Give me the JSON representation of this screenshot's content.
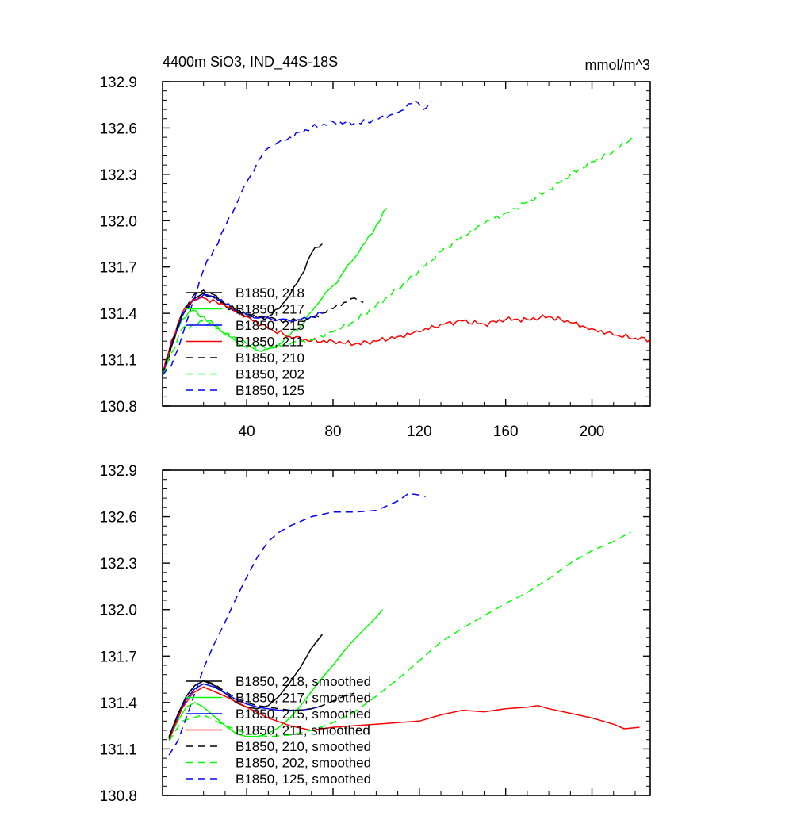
{
  "chart_data": [
    {
      "type": "line",
      "title": "4400m SiO3, IND_44S-18S",
      "units": "mmol/m^3",
      "xlabel": "",
      "ylabel": "",
      "xlim": [
        1,
        227
      ],
      "ylim": [
        130.8,
        132.9
      ],
      "xticks": [
        40,
        80,
        120,
        160,
        200
      ],
      "xtick_labels": [
        "40",
        "80",
        "120",
        "160",
        "200"
      ],
      "yticks": [
        130.8,
        131.1,
        131.4,
        131.7,
        132.0,
        132.3,
        132.6,
        132.9
      ],
      "ytick_labels": [
        "130.8",
        "131.1",
        "131.4",
        "131.7",
        "132.0",
        "132.3",
        "132.6",
        "132.9"
      ],
      "legend_location": "lower-left",
      "series": [
        {
          "name": "B1850, 218",
          "label": "B1850, 218",
          "color": "#000000",
          "dash": "solid",
          "x": [
            1,
            5,
            10,
            15,
            20,
            25,
            30,
            35,
            40,
            45,
            50,
            55,
            60,
            65,
            70,
            75
          ],
          "y": [
            131.0,
            131.18,
            131.38,
            131.49,
            131.53,
            131.5,
            131.45,
            131.42,
            131.38,
            131.37,
            131.38,
            131.43,
            131.52,
            131.64,
            131.79,
            131.85
          ]
        },
        {
          "name": "B1850, 217",
          "label": "B1850, 217",
          "color": "#00ff00",
          "dash": "solid",
          "x": [
            1,
            5,
            10,
            15,
            20,
            25,
            30,
            35,
            40,
            45,
            50,
            55,
            60,
            65,
            70,
            75,
            80,
            85,
            90,
            95,
            100,
            105
          ],
          "y": [
            131.0,
            131.2,
            131.36,
            131.42,
            131.38,
            131.32,
            131.27,
            131.22,
            131.18,
            131.16,
            131.17,
            131.2,
            131.26,
            131.32,
            131.41,
            131.5,
            131.58,
            131.67,
            131.76,
            131.86,
            131.97,
            132.08
          ]
        },
        {
          "name": "B1850, 215",
          "label": "B1850, 215",
          "color": "#0000ff",
          "dash": "solid",
          "x": [
            1,
            5,
            10,
            15,
            20,
            25,
            30,
            35,
            40,
            45,
            50,
            55,
            60,
            65,
            70,
            75
          ],
          "y": [
            131.0,
            131.2,
            131.38,
            131.48,
            131.52,
            131.51,
            131.46,
            131.42,
            131.39,
            131.37,
            131.37,
            131.36,
            131.35,
            131.36,
            131.38,
            131.4
          ]
        },
        {
          "name": "B1850, 211",
          "label": "B1850, 211",
          "color": "#ff0000",
          "dash": "solid",
          "x": [
            1,
            5,
            10,
            15,
            20,
            30,
            40,
            50,
            60,
            70,
            80,
            90,
            100,
            110,
            120,
            130,
            140,
            150,
            160,
            170,
            180,
            190,
            200,
            210,
            220,
            227
          ],
          "y": [
            131.0,
            131.22,
            131.4,
            131.49,
            131.5,
            131.45,
            131.38,
            131.3,
            131.25,
            131.22,
            131.22,
            131.2,
            131.22,
            131.25,
            131.28,
            131.33,
            131.35,
            131.33,
            131.36,
            131.36,
            131.38,
            131.34,
            131.3,
            131.26,
            131.24,
            131.23
          ]
        },
        {
          "name": "B1850, 210",
          "label": "B1850, 210",
          "color": "#000000",
          "dash": "dashed",
          "x": [
            1,
            5,
            10,
            15,
            20,
            25,
            30,
            35,
            40,
            45,
            50,
            55,
            60,
            65,
            70,
            75,
            80,
            85,
            90,
            94
          ],
          "y": [
            131.0,
            131.2,
            131.4,
            131.51,
            131.55,
            131.52,
            131.46,
            131.42,
            131.4,
            131.38,
            131.37,
            131.36,
            131.35,
            131.35,
            131.37,
            131.4,
            131.43,
            131.47,
            131.5,
            131.47
          ]
        },
        {
          "name": "B1850, 202",
          "label": "B1850, 202",
          "color": "#00ff00",
          "dash": "dashed",
          "x": [
            1,
            10,
            20,
            30,
            40,
            50,
            60,
            70,
            80,
            90,
            100,
            110,
            120,
            130,
            140,
            150,
            160,
            170,
            180,
            190,
            200,
            210,
            220
          ],
          "y": [
            131.0,
            131.3,
            131.35,
            131.27,
            131.2,
            131.18,
            131.2,
            131.23,
            131.28,
            131.35,
            131.45,
            131.56,
            131.68,
            131.8,
            131.9,
            131.98,
            132.05,
            132.12,
            132.2,
            132.3,
            132.38,
            132.45,
            132.55
          ]
        },
        {
          "name": "B1850, 125",
          "label": "B1850, 125",
          "color": "#0000ff",
          "dash": "dashed",
          "x": [
            1,
            5,
            10,
            15,
            20,
            25,
            30,
            35,
            40,
            45,
            50,
            55,
            60,
            70,
            80,
            90,
            100,
            110,
            118,
            122,
            126
          ],
          "y": [
            131.0,
            131.06,
            131.25,
            131.47,
            131.68,
            131.82,
            131.96,
            132.1,
            132.25,
            132.38,
            132.47,
            132.51,
            132.54,
            132.6,
            132.64,
            132.63,
            132.65,
            132.7,
            132.78,
            132.72,
            132.77
          ]
        }
      ]
    },
    {
      "type": "line",
      "title": "",
      "xlabel": "",
      "ylabel": "",
      "xlim": [
        1,
        227
      ],
      "ylim": [
        130.8,
        132.9
      ],
      "xticks": [
        40,
        80,
        120,
        160,
        200
      ],
      "yticks": [
        130.8,
        131.1,
        131.4,
        131.7,
        132.0,
        132.3,
        132.6,
        132.9
      ],
      "ytick_labels": [
        "130.8",
        "131.1",
        "131.4",
        "131.7",
        "132.0",
        "132.3",
        "132.6",
        "132.9"
      ],
      "legend_location": "lower-left",
      "series": [
        {
          "name": "B1850, 218, smoothed",
          "label": "B1850, 218, smoothed",
          "color": "#000000",
          "dash": "solid",
          "x": [
            4,
            8,
            12,
            16,
            20,
            25,
            30,
            35,
            40,
            45,
            50,
            55,
            60,
            65,
            70,
            75
          ],
          "y": [
            131.18,
            131.32,
            131.44,
            131.51,
            131.54,
            131.51,
            131.46,
            131.4,
            131.37,
            131.36,
            131.38,
            131.44,
            131.53,
            131.63,
            131.75,
            131.84
          ]
        },
        {
          "name": "B1850, 217, smoothed",
          "label": "B1850, 217, smoothed",
          "color": "#00ff00",
          "dash": "solid",
          "x": [
            4,
            8,
            12,
            16,
            20,
            25,
            30,
            35,
            40,
            45,
            50,
            55,
            60,
            65,
            70,
            75,
            80,
            85,
            90,
            95,
            100,
            103
          ],
          "y": [
            131.16,
            131.28,
            131.37,
            131.4,
            131.37,
            131.31,
            131.25,
            131.2,
            131.18,
            131.18,
            131.2,
            131.24,
            131.3,
            131.38,
            131.47,
            131.56,
            131.64,
            131.73,
            131.81,
            131.88,
            131.95,
            132.0
          ]
        },
        {
          "name": "B1850, 215, smoothed",
          "label": "B1850, 215, smoothed",
          "color": "#0000ff",
          "dash": "solid",
          "x": [
            4,
            8,
            12,
            16,
            20,
            25,
            30,
            35,
            40,
            45,
            50,
            55,
            60,
            65,
            70,
            73
          ],
          "y": [
            131.17,
            131.31,
            131.42,
            131.49,
            131.52,
            131.5,
            131.46,
            131.42,
            131.39,
            131.37,
            131.36,
            131.35,
            131.35,
            131.35,
            131.36,
            131.37
          ]
        },
        {
          "name": "B1850, 211, smoothed",
          "label": "B1850, 211, smoothed",
          "color": "#ff0000",
          "dash": "solid",
          "x": [
            4,
            10,
            15,
            20,
            30,
            40,
            50,
            60,
            70,
            80,
            90,
            100,
            110,
            120,
            130,
            140,
            150,
            160,
            170,
            175,
            180,
            190,
            200,
            210,
            215,
            222
          ],
          "y": [
            131.16,
            131.36,
            131.46,
            131.5,
            131.44,
            131.37,
            131.3,
            131.25,
            131.22,
            131.24,
            131.25,
            131.26,
            131.27,
            131.28,
            131.32,
            131.35,
            131.34,
            131.36,
            131.37,
            131.38,
            131.36,
            131.33,
            131.3,
            131.26,
            131.23,
            131.24
          ]
        },
        {
          "name": "B1850, 210, smoothed",
          "label": "B1850, 210, smoothed",
          "color": "#000000",
          "dash": "dashed",
          "x": [
            4,
            8,
            12,
            16,
            20,
            25,
            30,
            35,
            40,
            45,
            50,
            55,
            60,
            65,
            70,
            75,
            80,
            85,
            90
          ],
          "y": [
            131.17,
            131.32,
            131.44,
            131.51,
            131.54,
            131.52,
            131.47,
            131.43,
            131.4,
            131.38,
            131.37,
            131.36,
            131.35,
            131.35,
            131.36,
            131.38,
            131.41,
            131.44,
            131.46
          ]
        },
        {
          "name": "B1850, 202, smoothed",
          "label": "B1850, 202, smoothed",
          "color": "#00ff00",
          "dash": "dashed",
          "x": [
            4,
            10,
            20,
            30,
            40,
            50,
            60,
            70,
            80,
            90,
            100,
            110,
            120,
            130,
            140,
            150,
            160,
            170,
            180,
            190,
            200,
            210,
            218
          ],
          "y": [
            131.15,
            131.28,
            131.32,
            131.25,
            131.2,
            131.18,
            131.19,
            131.22,
            131.27,
            131.34,
            131.44,
            131.55,
            131.67,
            131.79,
            131.88,
            131.96,
            132.04,
            132.11,
            132.2,
            132.3,
            132.38,
            132.44,
            132.5
          ]
        },
        {
          "name": "B1850, 125, smoothed",
          "label": "B1850, 125, smoothed",
          "color": "#0000ff",
          "dash": "dashed",
          "x": [
            4,
            8,
            12,
            16,
            20,
            25,
            30,
            35,
            40,
            45,
            50,
            55,
            60,
            70,
            80,
            90,
            100,
            110,
            115,
            120,
            123
          ],
          "y": [
            131.06,
            131.15,
            131.3,
            131.46,
            131.62,
            131.78,
            131.92,
            132.07,
            132.21,
            132.34,
            132.44,
            132.5,
            132.54,
            132.6,
            132.63,
            132.63,
            132.64,
            132.7,
            132.75,
            132.74,
            132.73
          ]
        }
      ]
    }
  ]
}
